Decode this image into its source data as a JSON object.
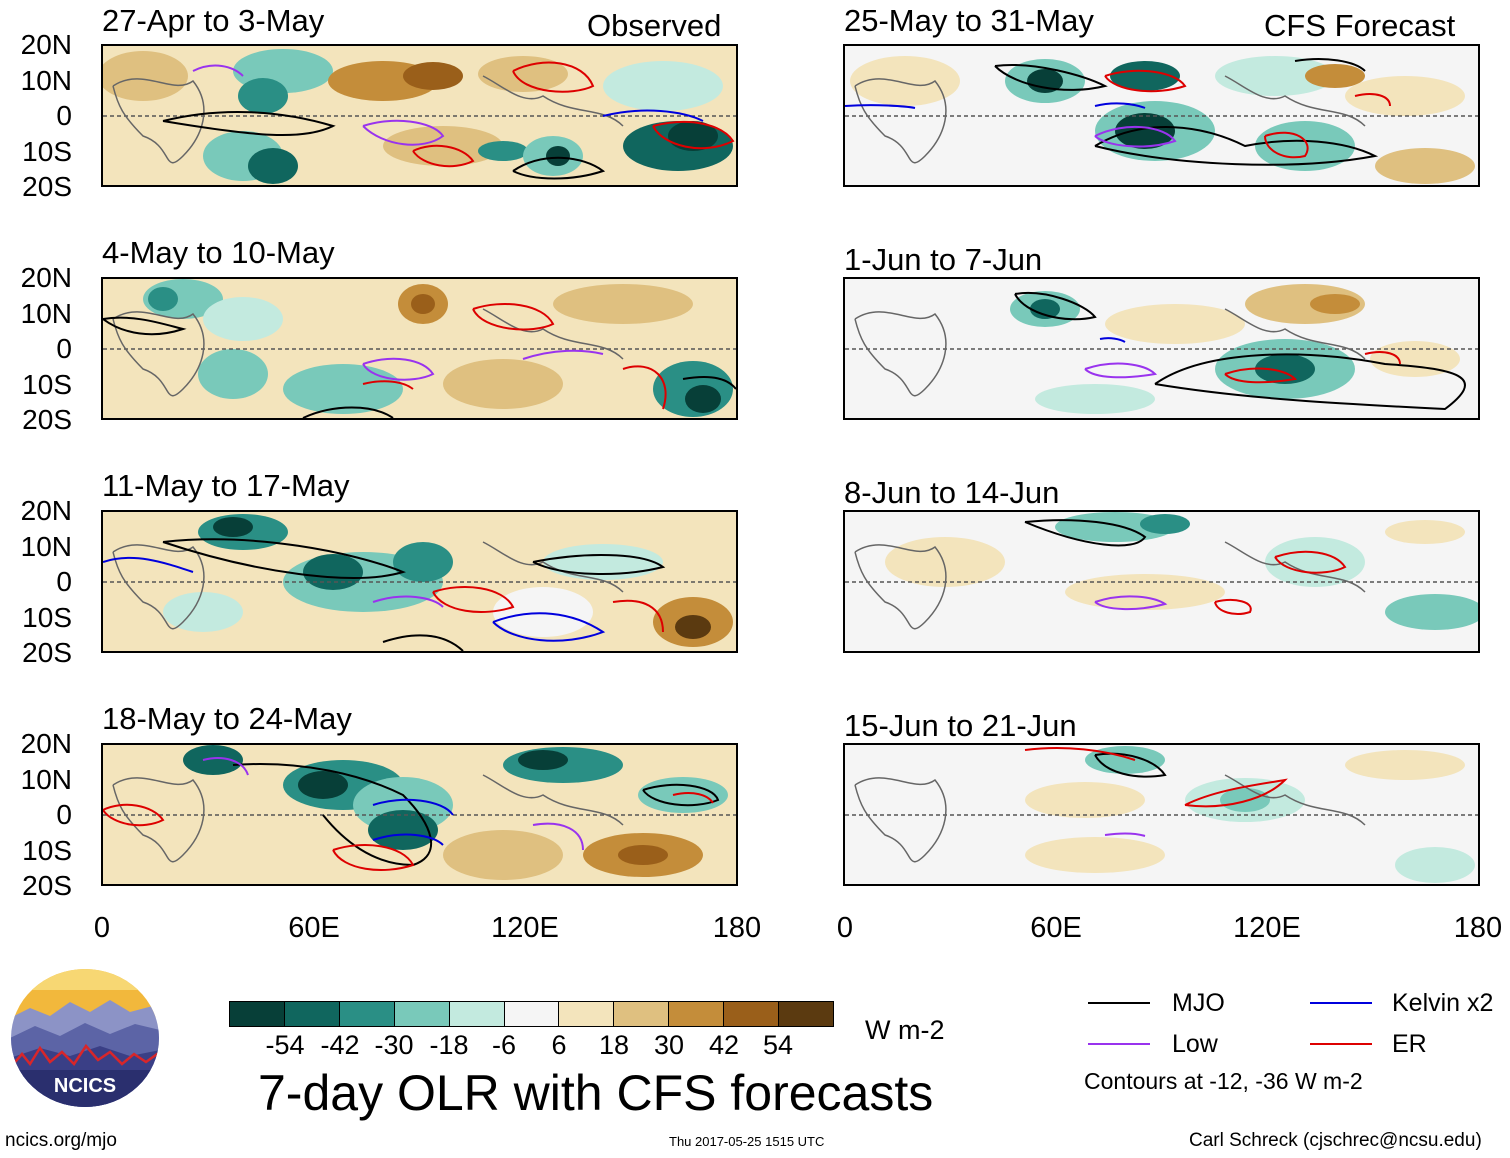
{
  "header": {
    "observed": "Observed",
    "forecast": "CFS Forecast"
  },
  "observed_panels": [
    {
      "title": "27-Apr to 3-May"
    },
    {
      "title": "4-May to 10-May"
    },
    {
      "title": "11-May to 17-May"
    },
    {
      "title": "18-May to 24-May"
    }
  ],
  "forecast_panels": [
    {
      "title": "25-May to 31-May"
    },
    {
      "title": "1-Jun to 7-Jun"
    },
    {
      "title": "8-Jun to 14-Jun"
    },
    {
      "title": "15-Jun to 21-Jun"
    }
  ],
  "lat_ticks": [
    "20N",
    "10N",
    "0",
    "10S",
    "20S"
  ],
  "lon_ticks": [
    "0",
    "60E",
    "120E",
    "180"
  ],
  "colorbar": {
    "labels": [
      "-54",
      "-42",
      "-30",
      "-18",
      "-6",
      "6",
      "18",
      "30",
      "42",
      "54"
    ],
    "colors": [
      "#073f38",
      "#10665e",
      "#2a8f85",
      "#79c9ba",
      "#c3eadf",
      "#f5f5f5",
      "#f3e4bc",
      "#dfc080",
      "#c48d3a",
      "#9a5f1a",
      "#5b3a10"
    ],
    "units": "W m-2"
  },
  "main_title": "7-day OLR with CFS forecasts",
  "legend": {
    "items": [
      {
        "name": "MJO",
        "color": "#000000"
      },
      {
        "name": "Kelvin x2",
        "color": "#0000dd"
      },
      {
        "name": "Low",
        "color": "#9933ee"
      },
      {
        "name": "ER",
        "color": "#dd0000"
      }
    ],
    "note": "Contours at -12, -36 W m-2"
  },
  "logo": {
    "text": "NCICS"
  },
  "footer": {
    "url": "ncics.org/mjo",
    "timestamp": "Thu 2017-05-25 1515 UTC",
    "credit": "Carl Schreck (cjschrec@ncsu.edu)"
  }
}
